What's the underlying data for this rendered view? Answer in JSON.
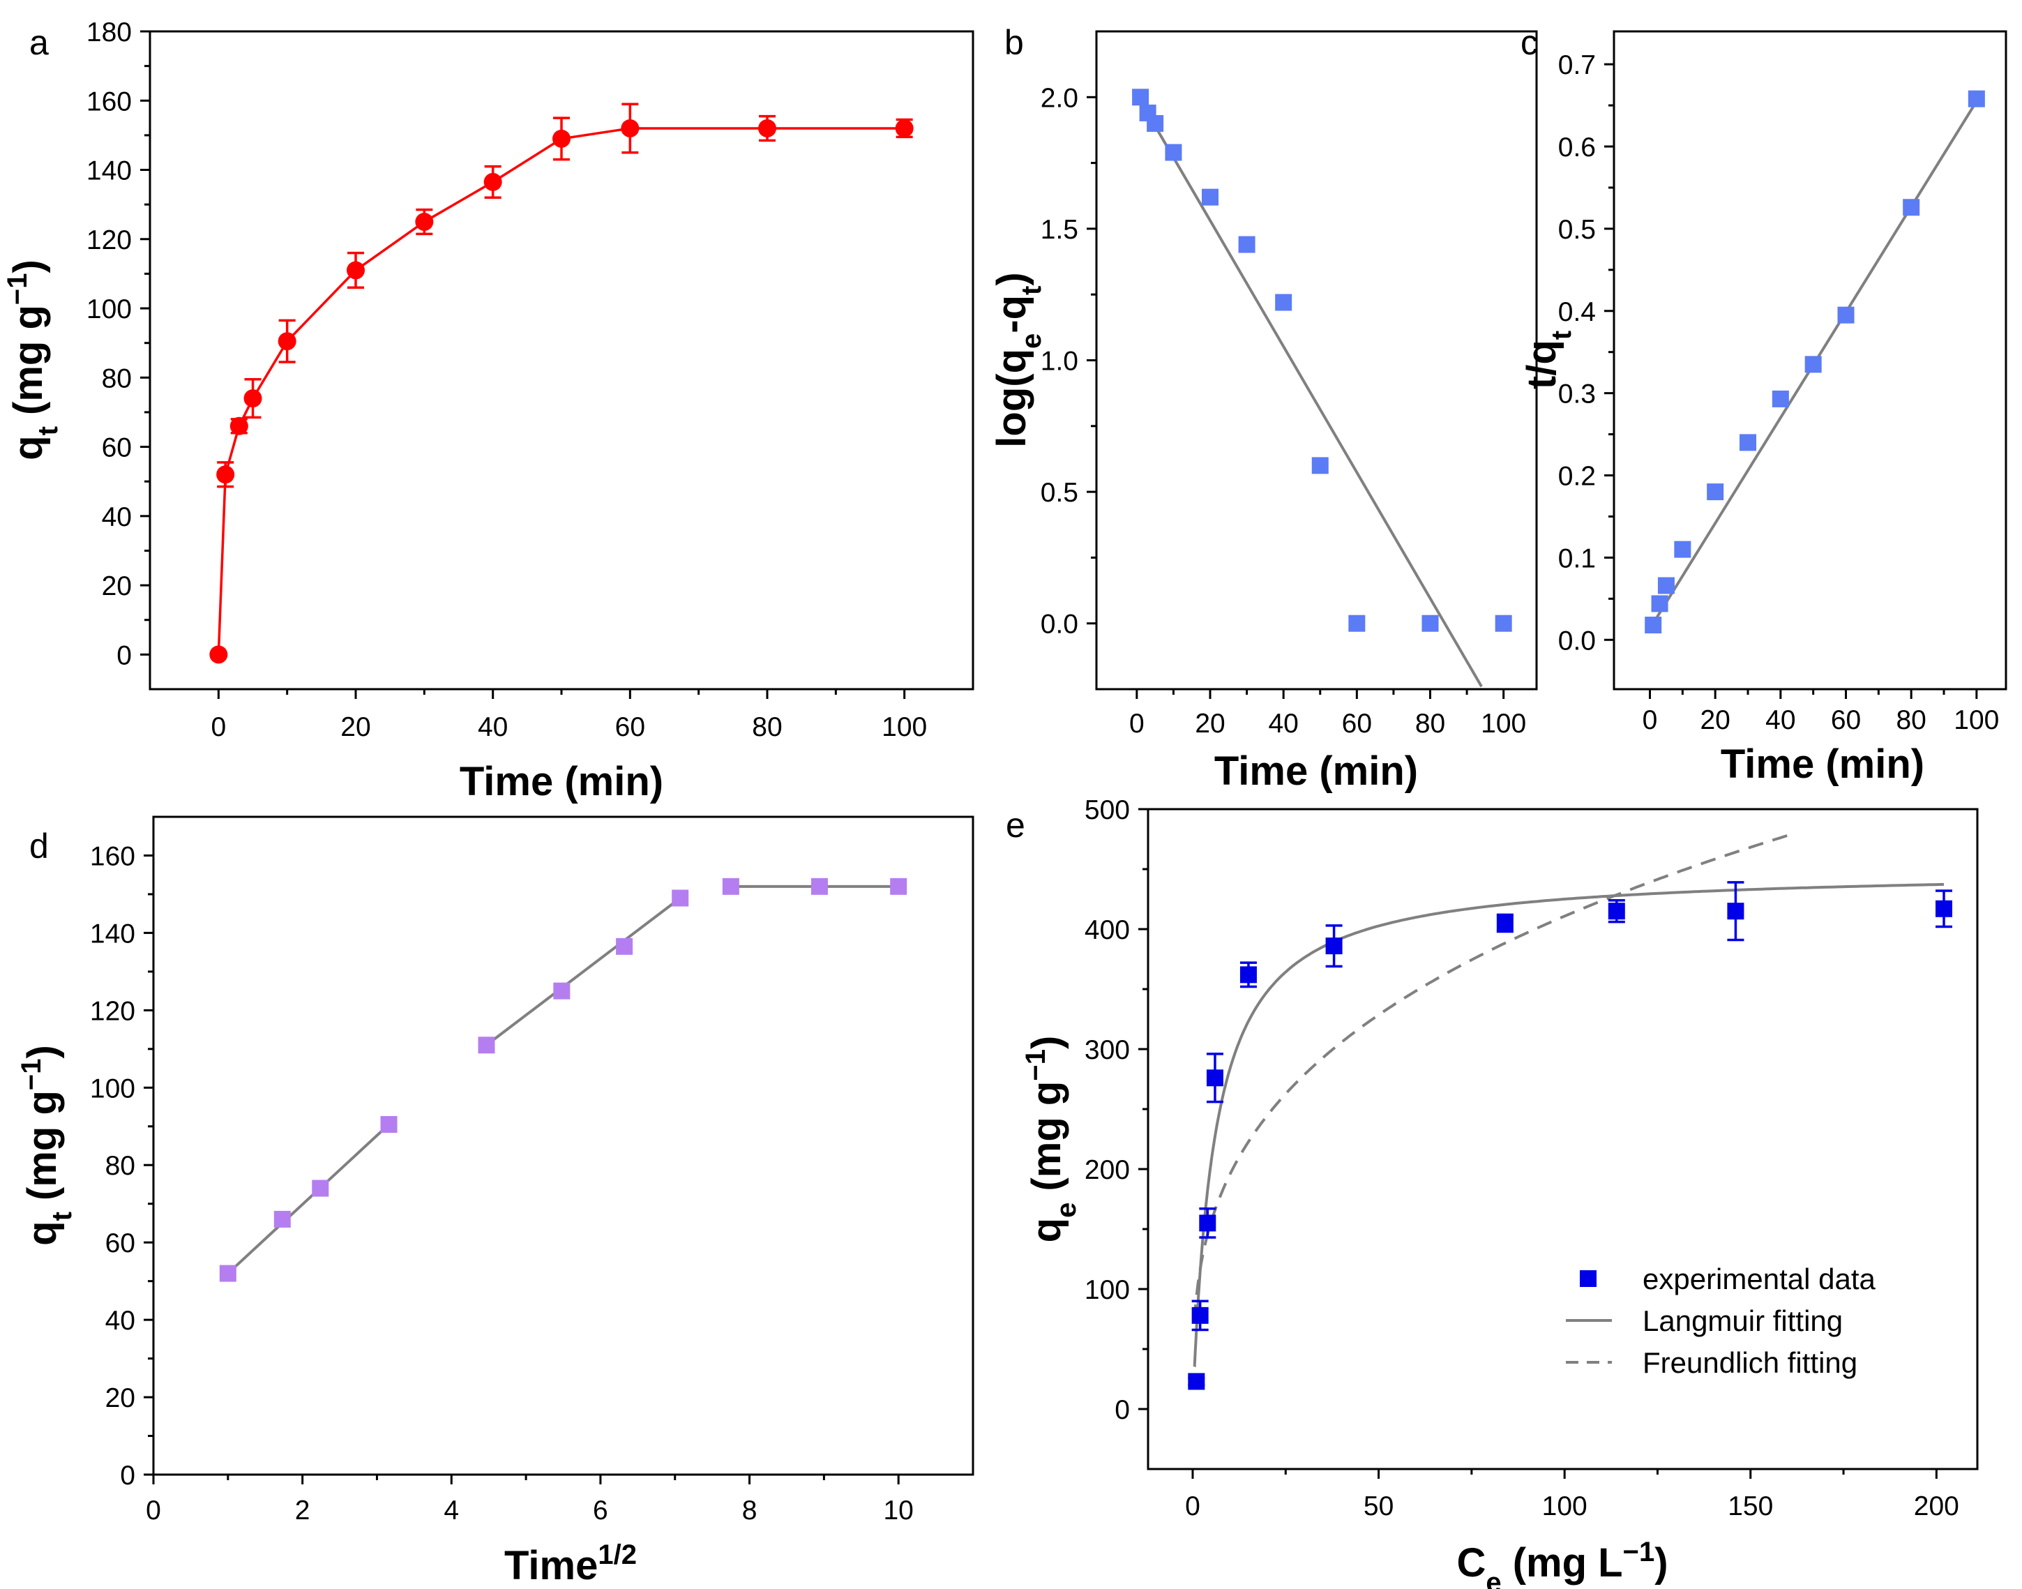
{
  "colors": {
    "red": "#ff0000",
    "blue_square": "#5b7cf5",
    "purple_square": "#b57ef0",
    "dark_blue": "#0000e8",
    "fit_gray": "#808080"
  },
  "chart_data": [
    {
      "id": "a",
      "type": "line",
      "panel_label": "a",
      "xlabel": "Time (min)",
      "ylabel": {
        "base": "q",
        "sub": "t",
        "unit": " (mg g",
        "sup": "−1",
        "end": ")"
      },
      "xlim": [
        -10,
        110
      ],
      "ylim": [
        -10,
        180
      ],
      "xticks": [
        0,
        20,
        40,
        60,
        80,
        100
      ],
      "yticks": [
        0,
        20,
        40,
        60,
        80,
        100,
        120,
        140,
        160,
        180
      ],
      "series": [
        {
          "name": "qt",
          "marker": "circle",
          "color": "#ff0000",
          "connect": true,
          "x": [
            0,
            1,
            3,
            5,
            10,
            20,
            30,
            40,
            50,
            60,
            80,
            100
          ],
          "y": [
            0,
            52,
            66,
            74,
            90.5,
            111,
            125,
            136.5,
            149,
            152,
            152,
            152
          ],
          "err": [
            0,
            3.5,
            2,
            5.5,
            6,
            5,
            3.5,
            4.5,
            6,
            7,
            3.5,
            2.5
          ]
        }
      ]
    },
    {
      "id": "b",
      "type": "scatter",
      "panel_label": "b",
      "xlabel": "Time (min)",
      "ylabel": {
        "base": "log(q",
        "sub": "e",
        "mid": "-q",
        "sub2": "t",
        "end": ")"
      },
      "xlim": [
        -11,
        109
      ],
      "ylim": [
        -0.25,
        2.25
      ],
      "xticks": [
        0,
        20,
        40,
        60,
        80,
        100
      ],
      "yticks": [
        "0.0",
        "0.5",
        "1.0",
        "1.5",
        "2.0"
      ],
      "series": [
        {
          "name": "data",
          "marker": "square",
          "color": "#5b7cf5",
          "x": [
            1,
            3,
            5,
            10,
            20,
            30,
            40,
            50,
            60,
            80,
            100
          ],
          "y": [
            2.0,
            1.94,
            1.9,
            1.79,
            1.62,
            1.44,
            1.22,
            0.6,
            0.0,
            0.0,
            0.0
          ]
        }
      ],
      "fit": {
        "x": [
          0,
          94
        ],
        "y": [
          2.01,
          -0.24
        ]
      }
    },
    {
      "id": "c",
      "type": "scatter",
      "panel_label": "c",
      "xlabel": "Time (min)",
      "ylabel": {
        "base": "t/q",
        "sub": "t"
      },
      "xlim": [
        -11,
        109
      ],
      "ylim": [
        -0.06,
        0.74
      ],
      "xticks": [
        0,
        20,
        40,
        60,
        80,
        100
      ],
      "yticks": [
        "0.0",
        "0.1",
        "0.2",
        "0.3",
        "0.4",
        "0.5",
        "0.6",
        "0.7"
      ],
      "series": [
        {
          "name": "data",
          "marker": "square",
          "color": "#5b7cf5",
          "x": [
            1,
            3,
            5,
            10,
            20,
            30,
            40,
            50,
            60,
            80,
            100
          ],
          "y": [
            0.018,
            0.044,
            0.066,
            0.11,
            0.18,
            0.24,
            0.293,
            0.335,
            0.395,
            0.526,
            0.658
          ]
        }
      ],
      "fit": {
        "x": [
          1,
          100
        ],
        "y": [
          0.02,
          0.655
        ]
      }
    },
    {
      "id": "d",
      "type": "scatter",
      "panel_label": "d",
      "xlabel": {
        "base": "Time",
        "sup": "1/2"
      },
      "ylabel": {
        "base": "q",
        "sub": "t",
        "unit": " (mg g",
        "sup": "−1",
        "end": ")"
      },
      "xlim": [
        0,
        11
      ],
      "ylim": [
        0,
        170
      ],
      "xticks": [
        0,
        2,
        4,
        6,
        8,
        10
      ],
      "yticks": [
        0,
        20,
        40,
        60,
        80,
        100,
        120,
        140,
        160
      ],
      "series": [
        {
          "name": "data",
          "marker": "square",
          "color": "#b57ef0",
          "x": [
            1,
            1.73,
            2.24,
            3.16,
            4.47,
            5.48,
            6.32,
            7.07,
            7.75,
            8.94,
            10
          ],
          "y": [
            52,
            66,
            74,
            90.5,
            111,
            125,
            136.5,
            149,
            152,
            152,
            152
          ]
        }
      ],
      "fits": [
        {
          "x": [
            1,
            3.16
          ],
          "y": [
            52,
            90.5
          ]
        },
        {
          "x": [
            4.47,
            7.07
          ],
          "y": [
            111,
            149
          ]
        },
        {
          "x": [
            7.75,
            10
          ],
          "y": [
            152,
            152
          ]
        }
      ]
    },
    {
      "id": "e",
      "type": "scatter",
      "panel_label": "e",
      "xlabel": {
        "base": "C",
        "sub": "e",
        "unit": " (mg L",
        "sup": "−1",
        "end": ")"
      },
      "ylabel": {
        "base": "q",
        "sub": "e",
        "unit": " (mg g",
        "sup": "−1",
        "end": ")"
      },
      "xlim": [
        -12,
        211
      ],
      "ylim": [
        -50,
        500
      ],
      "xticks": [
        0,
        50,
        100,
        150,
        200
      ],
      "yticks": [
        0,
        100,
        200,
        300,
        400,
        500
      ],
      "series": [
        {
          "name": "experimental data",
          "marker": "square",
          "color": "#0000e8",
          "x": [
            1,
            2,
            4,
            6,
            15,
            38,
            84,
            114,
            146,
            202
          ],
          "y": [
            23,
            78,
            155,
            276,
            362,
            386,
            405,
            415,
            415,
            417
          ],
          "err": [
            3,
            12,
            12,
            20,
            10,
            17,
            7,
            9,
            24,
            15
          ]
        }
      ],
      "langmuir": {
        "qm": 450,
        "kl": 0.17,
        "x_from": 0.5,
        "x_to": 202
      },
      "freundlich": {
        "kf": 93,
        "n": 3.1,
        "x_from": 0.5,
        "x_to": 160
      },
      "legend": [
        "experimental data",
        "Langmuir fitting",
        "Freundlich fitting"
      ],
      "legend_position": "bottom-right"
    }
  ]
}
